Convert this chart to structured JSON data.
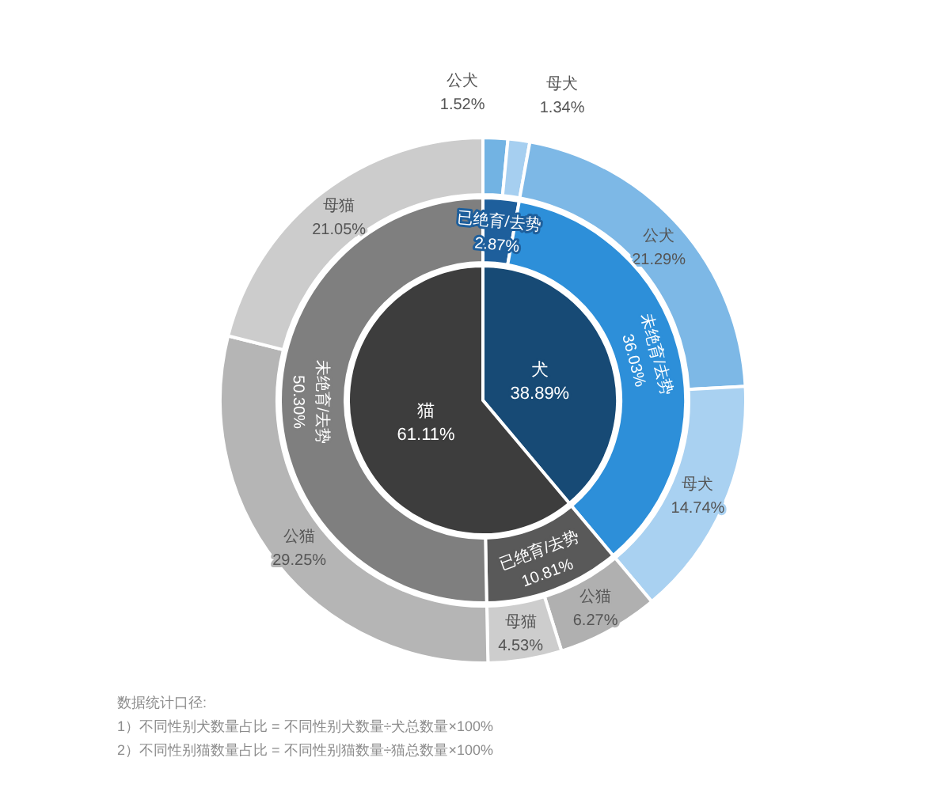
{
  "chart_data": [
    {
      "type": "pie",
      "legend": false,
      "data_labels": true,
      "categories": [
        "犬",
        "猫"
      ],
      "values": [
        38.89,
        61.11
      ],
      "value_labels": [
        "38.89%",
        "61.11%"
      ],
      "colors": [
        "#174a75",
        "#3d3d3d"
      ]
    },
    {
      "type": "donut",
      "data_labels": true,
      "categories": [
        "已绝育/去势",
        "未绝育/去势",
        "已绝育/去势",
        "未绝育/去势"
      ],
      "values": [
        2.87,
        36.03,
        10.81,
        50.3
      ],
      "value_labels": [
        "2.87%",
        "36.03%",
        "10.81%",
        "50.30%"
      ],
      "colors": [
        "#1e5f9c",
        "#2d8fd9",
        "#595959",
        "#7f7f7f"
      ]
    },
    {
      "type": "donut",
      "data_labels": true,
      "categories": [
        "公犬",
        "母犬",
        "公犬",
        "母犬",
        "公猫",
        "母猫",
        "公猫",
        "母猫"
      ],
      "values": [
        1.52,
        1.34,
        21.29,
        14.74,
        6.27,
        4.53,
        29.25,
        21.05
      ],
      "value_labels": [
        "1.52%",
        "1.34%",
        "21.29%",
        "14.74%",
        "6.27%",
        "4.53%",
        "29.25%",
        "21.05%"
      ],
      "colors": [
        "#72b3e3",
        "#a6cff0",
        "#7db8e6",
        "#a9d1f1",
        "#b0b0b0",
        "#cdcdcd",
        "#b5b5b5",
        "#cccccc"
      ],
      "annotations": [
        "数据统计口径:",
        "1）不同性别犬数量占比 = 不同性别犬数量÷犬总数量×100%",
        "2）不同性别猫数量占比 = 不同性别猫数量÷猫总数量×100%"
      ]
    }
  ]
}
